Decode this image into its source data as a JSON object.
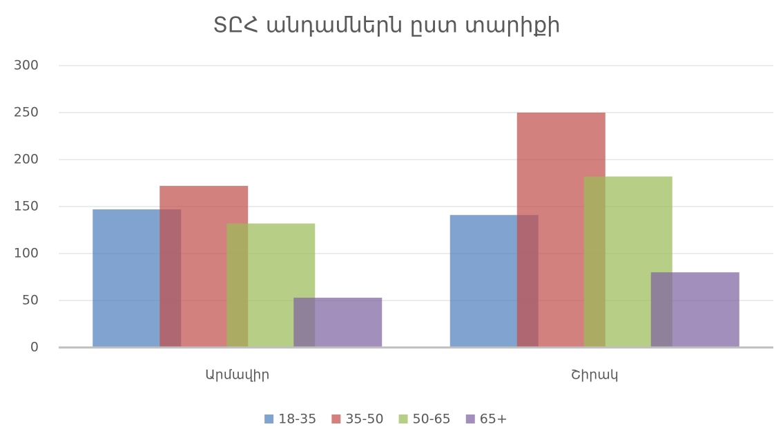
{
  "chart_data": {
    "type": "bar",
    "title": "ՏԸՀ անդամներն ըստ տարիքի",
    "categories": [
      "Արմավիր",
      "Շիրակ"
    ],
    "series": [
      {
        "name": "18-35",
        "color": "#4f81bd",
        "values": [
          147,
          141
        ]
      },
      {
        "name": "35-50",
        "color": "#c0504d",
        "values": [
          172,
          250
        ]
      },
      {
        "name": "50-65",
        "color": "#9bbb59",
        "values": [
          132,
          182
        ]
      },
      {
        "name": "65+",
        "color": "#8064a2",
        "values": [
          53,
          80
        ]
      }
    ],
    "ylim": [
      0,
      300
    ],
    "yticks": [
      0,
      50,
      100,
      150,
      200,
      250,
      300
    ],
    "grid": true,
    "legend": "bottom"
  }
}
